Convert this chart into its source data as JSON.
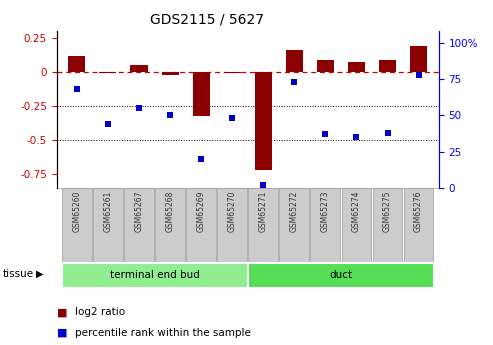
{
  "title": "GDS2115 / 5627",
  "samples": [
    "GSM65260",
    "GSM65261",
    "GSM65267",
    "GSM65268",
    "GSM65269",
    "GSM65270",
    "GSM65271",
    "GSM65272",
    "GSM65273",
    "GSM65274",
    "GSM65275",
    "GSM65276"
  ],
  "log2_ratio": [
    0.12,
    -0.01,
    0.05,
    -0.02,
    -0.32,
    -0.01,
    -0.72,
    0.16,
    0.09,
    0.07,
    0.09,
    0.19
  ],
  "percentile_rank": [
    68,
    44,
    55,
    50,
    20,
    48,
    2,
    73,
    37,
    35,
    38,
    78
  ],
  "tissue_groups": [
    {
      "label": "terminal end bud",
      "start": 0,
      "end": 6,
      "color": "#90EE90"
    },
    {
      "label": "duct",
      "start": 6,
      "end": 12,
      "color": "#55DD55"
    }
  ],
  "ylim_left": [
    -0.85,
    0.3
  ],
  "ylim_right": [
    0,
    108
  ],
  "yticks_left": [
    0.25,
    0.0,
    -0.25,
    -0.5,
    -0.75
  ],
  "yticks_right": [
    100,
    75,
    50,
    25,
    0
  ],
  "bar_color": "#8B0000",
  "scatter_color": "#0000CD",
  "zero_line_color": "#CC0000",
  "dotted_line_values": [
    -0.25,
    -0.5
  ],
  "tissue_label": "tissue",
  "legend_bar": "log2 ratio",
  "legend_scatter": "percentile rank within the sample",
  "bar_width": 0.55
}
